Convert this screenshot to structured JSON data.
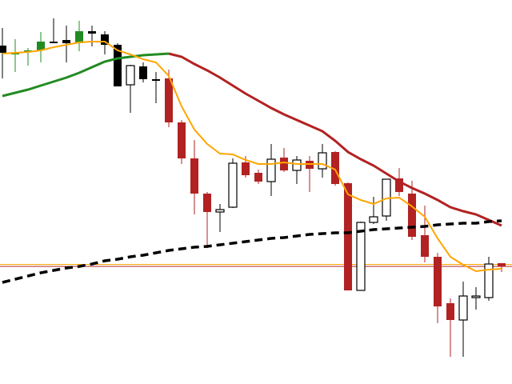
{
  "chart_data": {
    "type": "candlestick",
    "title": "",
    "xlabel": "",
    "ylabel": "",
    "ylim": [
      0,
      480
    ],
    "grid": false,
    "colors": {
      "green": "#228b22",
      "black": "#000000",
      "red": "#b22222",
      "white": "#ffffff",
      "fast_ma": "#ffa500",
      "slow_ma_up": "#228b22",
      "slow_ma_down": "#b22222",
      "long_ma": "#000000",
      "level_1": "#ffa500",
      "level_2": "#b22222"
    },
    "candles": [
      {
        "o": 423,
        "h": 445,
        "l": 382,
        "c": 414,
        "color": "black"
      },
      {
        "o": 414,
        "h": 431,
        "l": 390,
        "c": 413,
        "color": "green"
      },
      {
        "o": 416,
        "h": 420,
        "l": 398,
        "c": 417,
        "color": "green"
      },
      {
        "o": 417,
        "h": 440,
        "l": 402,
        "c": 428,
        "color": "green"
      },
      {
        "o": 428,
        "h": 457,
        "l": 427,
        "c": 427,
        "color": "black"
      },
      {
        "o": 430,
        "h": 448,
        "l": 402,
        "c": 426,
        "color": "black"
      },
      {
        "o": 426,
        "h": 454,
        "l": 416,
        "c": 441,
        "color": "green"
      },
      {
        "o": 441,
        "h": 448,
        "l": 422,
        "c": 438,
        "color": "black"
      },
      {
        "o": 437,
        "h": 441,
        "l": 412,
        "c": 424,
        "color": "black"
      },
      {
        "o": 424,
        "h": 426,
        "l": 372,
        "c": 372,
        "color": "black"
      },
      {
        "o": 374,
        "h": 399,
        "l": 339,
        "c": 398,
        "color": "white"
      },
      {
        "o": 397,
        "h": 402,
        "l": 377,
        "c": 381,
        "color": "black"
      },
      {
        "o": 381,
        "h": 390,
        "l": 351,
        "c": 380,
        "color": "black"
      },
      {
        "o": 382,
        "h": 393,
        "l": 321,
        "c": 327,
        "color": "red"
      },
      {
        "o": 327,
        "h": 330,
        "l": 275,
        "c": 282,
        "color": "red"
      },
      {
        "o": 282,
        "h": 305,
        "l": 212,
        "c": 238,
        "color": "red"
      },
      {
        "o": 238,
        "h": 240,
        "l": 170,
        "c": 215,
        "color": "red"
      },
      {
        "o": 215,
        "h": 225,
        "l": 190,
        "c": 218,
        "color": "white"
      },
      {
        "o": 221,
        "h": 282,
        "l": 220,
        "c": 276,
        "color": "white"
      },
      {
        "o": 277,
        "h": 285,
        "l": 258,
        "c": 261,
        "color": "red"
      },
      {
        "o": 264,
        "h": 268,
        "l": 250,
        "c": 253,
        "color": "red"
      },
      {
        "o": 253,
        "h": 300,
        "l": 235,
        "c": 281,
        "color": "white"
      },
      {
        "o": 283,
        "h": 295,
        "l": 265,
        "c": 267,
        "color": "red"
      },
      {
        "o": 267,
        "h": 285,
        "l": 250,
        "c": 280,
        "color": "white"
      },
      {
        "o": 279,
        "h": 285,
        "l": 240,
        "c": 269,
        "color": "red"
      },
      {
        "o": 269,
        "h": 300,
        "l": 258,
        "c": 289,
        "color": "white"
      },
      {
        "o": 290,
        "h": 291,
        "l": 248,
        "c": 250,
        "color": "red"
      },
      {
        "o": 251,
        "h": 252,
        "l": 117,
        "c": 117,
        "color": "red"
      },
      {
        "o": 117,
        "h": 203,
        "l": 117,
        "c": 202,
        "color": "white"
      },
      {
        "o": 202,
        "h": 234,
        "l": 200,
        "c": 209,
        "color": "white"
      },
      {
        "o": 210,
        "h": 256,
        "l": 204,
        "c": 256,
        "color": "white"
      },
      {
        "o": 257,
        "h": 270,
        "l": 235,
        "c": 240,
        "color": "red"
      },
      {
        "o": 238,
        "h": 254,
        "l": 180,
        "c": 184,
        "color": "red"
      },
      {
        "o": 186,
        "h": 223,
        "l": 152,
        "c": 159,
        "color": "red"
      },
      {
        "o": 159,
        "h": 164,
        "l": 76,
        "c": 97,
        "color": "red"
      },
      {
        "o": 101,
        "h": 107,
        "l": 34,
        "c": 80,
        "color": "red"
      },
      {
        "o": 80,
        "h": 128,
        "l": 34,
        "c": 110,
        "color": "white"
      },
      {
        "o": 109,
        "h": 121,
        "l": 93,
        "c": 110,
        "color": "white"
      },
      {
        "o": 108,
        "h": 159,
        "l": 104,
        "c": 150,
        "color": "white"
      },
      {
        "o": 151,
        "h": 151,
        "l": 140,
        "c": 147,
        "color": "red"
      }
    ],
    "fast_ma": [
      413,
      414,
      415,
      417,
      421,
      424,
      427,
      428,
      428,
      417,
      412,
      406,
      402,
      385,
      347,
      318,
      300,
      288,
      287,
      280,
      275,
      275,
      277,
      275,
      275,
      275,
      268,
      237,
      230,
      225,
      232,
      233,
      222,
      209,
      182,
      159,
      149,
      141,
      143,
      144
    ],
    "slow_ma": [
      360,
      364,
      368,
      373,
      378,
      383,
      389,
      396,
      403,
      407,
      409,
      411,
      412,
      413,
      409,
      400,
      392,
      383,
      373,
      363,
      354,
      345,
      337,
      330,
      323,
      316,
      304,
      290,
      281,
      273,
      263,
      253,
      245,
      238,
      230,
      221,
      216,
      212,
      205,
      198
    ],
    "slow_ma_turn_index": 13,
    "long_ma": [
      127,
      131,
      135,
      139,
      142,
      145,
      147,
      150,
      154,
      156,
      159,
      161,
      164,
      167,
      169,
      171,
      172,
      174,
      176,
      178,
      180,
      182,
      183,
      185,
      187,
      188,
      189,
      189,
      191,
      193,
      194,
      195,
      196,
      197,
      199,
      200,
      201,
      201,
      203,
      204
    ],
    "levels": [
      149.5,
      147
    ]
  }
}
